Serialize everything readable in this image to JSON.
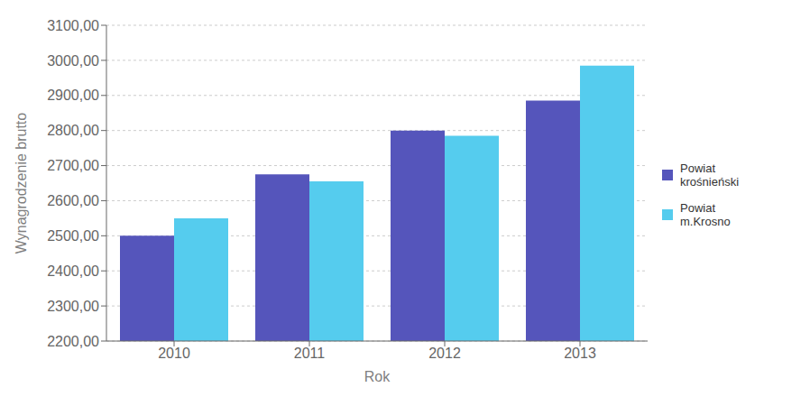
{
  "chart_data": {
    "type": "bar",
    "categories": [
      "2010",
      "2011",
      "2012",
      "2013"
    ],
    "series": [
      {
        "name": "Powiat\nkrośnieński",
        "color": "#5555BB",
        "values": [
          2500,
          2675,
          2800,
          2885
        ]
      },
      {
        "name": "Powiat\nm.Krosno",
        "color": "#55CCEE",
        "values": [
          2550,
          2655,
          2785,
          2985
        ]
      }
    ],
    "xlabel": "Rok",
    "ylabel": "Wynagrodzenie brutto",
    "ylim": [
      2200,
      3100
    ],
    "yticks": [
      {
        "value": 2200,
        "label": "2200,00"
      },
      {
        "value": 2300,
        "label": "2300,00"
      },
      {
        "value": 2400,
        "label": "2400,00"
      },
      {
        "value": 2500,
        "label": "2500,00"
      },
      {
        "value": 2600,
        "label": "2600,00"
      },
      {
        "value": 2700,
        "label": "2700,00"
      },
      {
        "value": 2800,
        "label": "2800,00"
      },
      {
        "value": 2900,
        "label": "2900,00"
      },
      {
        "value": 3000,
        "label": "3000,00"
      },
      {
        "value": 3100,
        "label": "3100,00"
      }
    ],
    "grid": true,
    "legend": "right"
  }
}
